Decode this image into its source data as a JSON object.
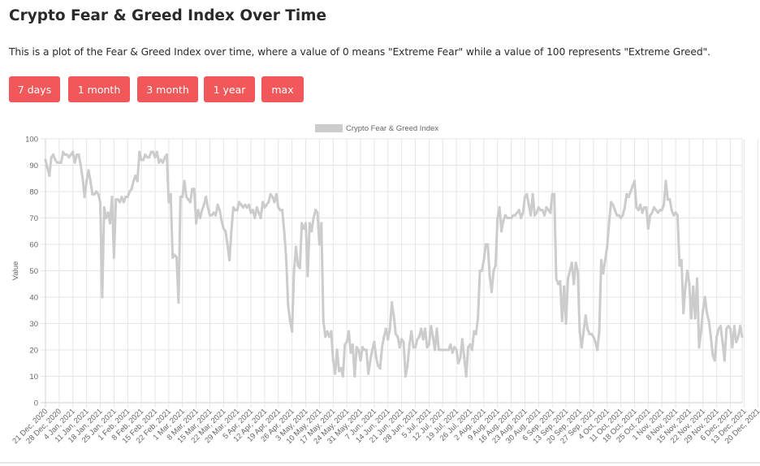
{
  "page": {
    "title": "Crypto Fear & Greed Index Over Time",
    "description": "This is a plot of the Fear & Greed Index over time, where a value of 0 means \"Extreme Fear\" while a value of 100 represents \"Extreme Greed\"."
  },
  "buttons": [
    "7 days",
    "1 month",
    "3 month",
    "1 year",
    "max"
  ],
  "colors": {
    "button_bg": "#f2585a",
    "line": "#cccccc",
    "grid": "#e5e5e5"
  },
  "chart_data": {
    "type": "line",
    "title": "",
    "xlabel": "",
    "ylabel": "Value",
    "ylim": [
      0,
      100
    ],
    "yticks": [
      0,
      10,
      20,
      30,
      40,
      50,
      60,
      70,
      80,
      90,
      100
    ],
    "grid": true,
    "legend_position": "top-center",
    "x_tick_labels": [
      "21 Dec, 2020",
      "28 Dec, 2020",
      "4 Jan, 2021",
      "11 Jan, 2021",
      "18 Jan, 2021",
      "25 Jan, 2021",
      "1 Feb, 2021",
      "8 Feb, 2021",
      "15 Feb, 2021",
      "22 Feb, 2021",
      "1 Mar, 2021",
      "8 Mar, 2021",
      "15 Mar, 2021",
      "22 Mar, 2021",
      "29 Mar, 2021",
      "5 Apr, 2021",
      "12 Apr, 2021",
      "19 Apr, 2021",
      "26 Apr, 2021",
      "3 May, 2021",
      "10 May, 2021",
      "17 May, 2021",
      "24 May, 2021",
      "31 May, 2021",
      "7 Jun, 2021",
      "14 Jun, 2021",
      "21 Jun, 2021",
      "28 Jun, 2021",
      "5 Jul, 2021",
      "12 Jul, 2021",
      "19 Jul, 2021",
      "26 Jul, 2021",
      "2 Aug, 2021",
      "9 Aug, 2021",
      "16 Aug, 2021",
      "23 Aug, 2021",
      "30 Aug, 2021",
      "6 Sep, 2021",
      "13 Sep, 2021",
      "20 Sep, 2021",
      "27 Sep, 2021",
      "4 Oct, 2021",
      "11 Oct, 2021",
      "18 Oct, 2021",
      "25 Oct, 2021",
      "1 Nov, 2021",
      "8 Nov, 2021",
      "15 Nov, 2021",
      "22 Nov, 2021",
      "29 Nov, 2021",
      "6 Dec, 2021",
      "13 Dec, 2021",
      "20 Dec, 2021"
    ],
    "series": [
      {
        "name": "Crypto Fear & Greed Index",
        "color": "#cccccc",
        "weekly_values": [
          [
            92,
            89,
            86,
            93,
            94,
            92,
            91
          ],
          [
            91,
            91,
            95,
            94,
            94,
            93,
            94
          ],
          [
            95,
            91,
            94,
            94,
            90,
            85,
            78
          ],
          [
            84,
            88,
            84,
            79,
            79,
            80,
            79
          ],
          [
            76,
            40,
            74,
            70,
            72,
            68,
            78
          ],
          [
            55,
            77,
            77,
            76,
            78,
            76,
            78
          ],
          [
            78,
            80,
            81,
            84,
            86,
            84,
            95
          ],
          [
            92,
            92,
            94,
            93,
            93,
            95,
            95
          ],
          [
            93,
            95,
            91,
            92,
            91,
            93,
            94
          ],
          [
            76,
            79,
            55,
            56,
            55,
            38,
            78
          ],
          [
            78,
            84,
            78,
            77,
            76,
            81,
            81
          ],
          [
            68,
            73,
            70,
            73,
            75,
            78,
            74
          ],
          [
            71,
            71,
            72,
            71,
            75,
            73,
            69
          ],
          [
            66,
            65,
            60,
            54,
            65,
            74,
            73
          ],
          [
            73,
            76,
            75,
            74,
            75,
            74,
            75
          ],
          [
            72,
            73,
            70,
            74,
            72,
            70,
            76
          ],
          [
            74,
            75,
            76,
            79,
            78,
            76,
            79
          ],
          [
            74,
            73,
            73,
            65,
            55,
            37,
            31
          ],
          [
            27,
            50,
            59,
            52,
            51,
            68,
            66
          ],
          [
            68,
            48,
            68,
            65,
            70,
            73,
            72
          ],
          [
            60,
            68,
            31,
            25,
            27,
            25,
            27
          ],
          [
            16,
            11,
            20,
            12,
            13,
            10,
            22
          ],
          [
            23,
            27,
            19,
            22,
            10,
            21,
            20
          ],
          [
            16,
            21,
            20,
            20,
            11,
            16,
            20
          ],
          [
            23,
            17,
            14,
            13,
            21,
            25,
            28
          ],
          [
            24,
            28,
            38,
            33,
            26,
            25,
            21
          ],
          [
            24,
            23,
            10,
            14,
            22,
            27,
            21
          ],
          [
            21,
            24,
            25,
            28,
            24,
            28,
            21
          ],
          [
            22,
            29,
            25,
            20,
            28,
            20,
            20
          ],
          [
            20,
            20,
            20,
            20,
            22,
            19,
            21
          ],
          [
            20,
            15,
            17,
            24,
            17,
            10,
            21
          ],
          [
            22,
            20,
            27,
            26,
            32,
            50,
            50
          ],
          [
            54,
            60,
            60,
            48,
            42,
            50,
            52
          ],
          [
            70,
            74,
            65,
            69,
            71,
            70,
            70
          ],
          [
            70,
            71,
            71,
            72,
            73,
            70,
            72
          ],
          [
            78,
            79,
            75,
            71,
            79,
            71,
            72
          ],
          [
            74,
            73,
            73,
            71,
            74,
            73,
            72
          ],
          [
            79,
            79,
            47,
            45,
            46,
            31,
            44
          ],
          [
            30,
            47,
            50,
            53,
            45,
            53,
            50
          ],
          [
            27,
            21,
            27,
            33,
            28,
            26,
            26
          ],
          [
            25,
            23,
            20,
            27,
            54,
            49,
            54
          ],
          [
            59,
            68,
            76,
            75,
            73,
            71,
            71
          ],
          [
            70,
            71,
            74,
            79,
            78,
            80,
            82
          ],
          [
            84,
            74,
            73,
            75,
            72,
            74,
            74
          ],
          [
            66,
            71,
            72,
            74,
            73,
            72,
            73
          ],
          [
            73,
            75,
            84,
            77,
            77,
            73,
            71
          ],
          [
            72,
            71,
            52,
            54,
            34,
            44,
            50
          ],
          [
            45,
            32,
            44,
            32,
            47,
            21,
            27
          ],
          [
            35,
            40,
            34,
            31,
            25,
            18,
            16
          ],
          [
            25,
            28,
            29,
            23,
            16,
            28,
            29
          ],
          [
            28,
            21,
            29,
            23,
            25,
            29,
            25
          ]
        ]
      }
    ]
  }
}
